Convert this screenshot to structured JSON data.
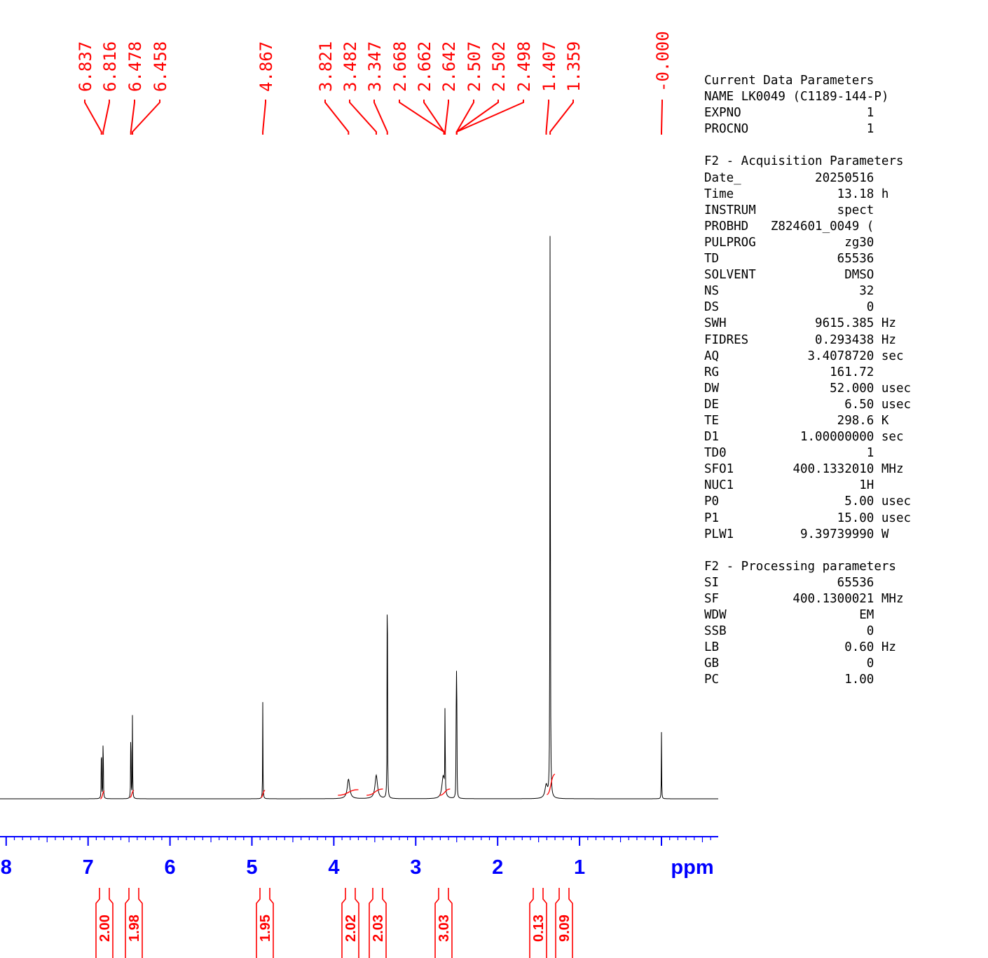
{
  "chart_data": {
    "type": "line",
    "title": "",
    "xlabel": "ppm",
    "ylabel": "",
    "xlim": [
      8.1,
      -0.7
    ],
    "ticks": [
      "8",
      "7",
      "6",
      "5",
      "4",
      "3",
      "2",
      "1",
      "ppm"
    ],
    "peak_labels": [
      "6.837",
      "6.816",
      "6.478",
      "6.458",
      "4.867",
      "3.821",
      "3.482",
      "3.347",
      "2.668",
      "2.662",
      "2.642",
      "2.507",
      "2.502",
      "2.498",
      "1.407",
      "1.359",
      "-0.000"
    ],
    "series": [
      {
        "peaks": [
          {
            "ppm": 6.837,
            "height": 0.118
          },
          {
            "ppm": 6.816,
            "height": 0.133
          },
          {
            "ppm": 6.478,
            "height": 0.149
          },
          {
            "ppm": 6.458,
            "height": 0.133
          },
          {
            "ppm": 4.867,
            "height": 0.153
          },
          {
            "ppm": 3.821,
            "height": 0.03
          },
          {
            "ppm": 3.482,
            "height": 0.036
          },
          {
            "ppm": 3.347,
            "height": 0.517
          },
          {
            "ppm": 2.668,
            "height": 0.015
          },
          {
            "ppm": 2.662,
            "height": 0.02
          },
          {
            "ppm": 2.642,
            "height": 0.166
          },
          {
            "ppm": 2.507,
            "height": 0.11
          },
          {
            "ppm": 2.502,
            "height": 0.153
          },
          {
            "ppm": 2.498,
            "height": 0.11
          },
          {
            "ppm": 1.407,
            "height": 0.02
          },
          {
            "ppm": 1.359,
            "height": 1.0
          },
          {
            "ppm": 0.0,
            "height": 0.102
          }
        ]
      }
    ],
    "integrals": [
      {
        "ppm": 6.83,
        "value": "2.00"
      },
      {
        "ppm": 6.47,
        "value": "1.98"
      },
      {
        "ppm": 4.87,
        "value": "1.95"
      },
      {
        "ppm": 3.82,
        "value": "2.02"
      },
      {
        "ppm": 3.48,
        "value": "2.03"
      },
      {
        "ppm": 2.65,
        "value": "3.03"
      },
      {
        "ppm": 1.41,
        "value": "0.13"
      },
      {
        "ppm": 1.36,
        "value": "9.09"
      }
    ],
    "colors": {
      "spectrum": "#000000",
      "annotation": "#ff0000",
      "axis": "#0000ff"
    }
  },
  "params": {
    "current": {
      "title": "Current Data Parameters",
      "rows": [
        {
          "k": "NAME",
          "v": "LK0049 (C1189-144-P)",
          "u": ""
        },
        {
          "k": "EXPNO",
          "v": "1",
          "u": ""
        },
        {
          "k": "PROCNO",
          "v": "1",
          "u": ""
        }
      ]
    },
    "acquisition": {
      "title": "F2 - Acquisition Parameters",
      "rows": [
        {
          "k": "Date_",
          "v": "20250516",
          "u": ""
        },
        {
          "k": "Time",
          "v": "13.18",
          "u": "h"
        },
        {
          "k": "INSTRUM",
          "v": "spect",
          "u": ""
        },
        {
          "k": "PROBHD",
          "v": "Z824601_0049 (",
          "u": ""
        },
        {
          "k": "PULPROG",
          "v": "zg30",
          "u": ""
        },
        {
          "k": "TD",
          "v": "65536",
          "u": ""
        },
        {
          "k": "SOLVENT",
          "v": "DMSO",
          "u": ""
        },
        {
          "k": "NS",
          "v": "32",
          "u": ""
        },
        {
          "k": "DS",
          "v": "0",
          "u": ""
        },
        {
          "k": "SWH",
          "v": "9615.385",
          "u": "Hz"
        },
        {
          "k": "FIDRES",
          "v": "0.293438",
          "u": "Hz"
        },
        {
          "k": "AQ",
          "v": "3.4078720",
          "u": "sec"
        },
        {
          "k": "RG",
          "v": "161.72",
          "u": ""
        },
        {
          "k": "DW",
          "v": "52.000",
          "u": "usec"
        },
        {
          "k": "DE",
          "v": "6.50",
          "u": "usec"
        },
        {
          "k": "TE",
          "v": "298.6",
          "u": "K"
        },
        {
          "k": "D1",
          "v": "1.00000000",
          "u": "sec"
        },
        {
          "k": "TD0",
          "v": "1",
          "u": ""
        },
        {
          "k": "SFO1",
          "v": "400.1332010",
          "u": "MHz"
        },
        {
          "k": "NUC1",
          "v": "1H",
          "u": ""
        },
        {
          "k": "P0",
          "v": "5.00",
          "u": "usec"
        },
        {
          "k": "P1",
          "v": "15.00",
          "u": "usec"
        },
        {
          "k": "PLW1",
          "v": "9.39739990",
          "u": "W"
        }
      ]
    },
    "processing": {
      "title": "F2 - Processing parameters",
      "rows": [
        {
          "k": "SI",
          "v": "65536",
          "u": ""
        },
        {
          "k": "SF",
          "v": "400.1300021",
          "u": "MHz"
        },
        {
          "k": "WDW",
          "v": "EM",
          "u": ""
        },
        {
          "k": "SSB",
          "v": "0",
          "u": ""
        },
        {
          "k": "LB",
          "v": "0.60",
          "u": "Hz"
        },
        {
          "k": "GB",
          "v": "0",
          "u": ""
        },
        {
          "k": "PC",
          "v": "1.00",
          "u": ""
        }
      ]
    }
  }
}
